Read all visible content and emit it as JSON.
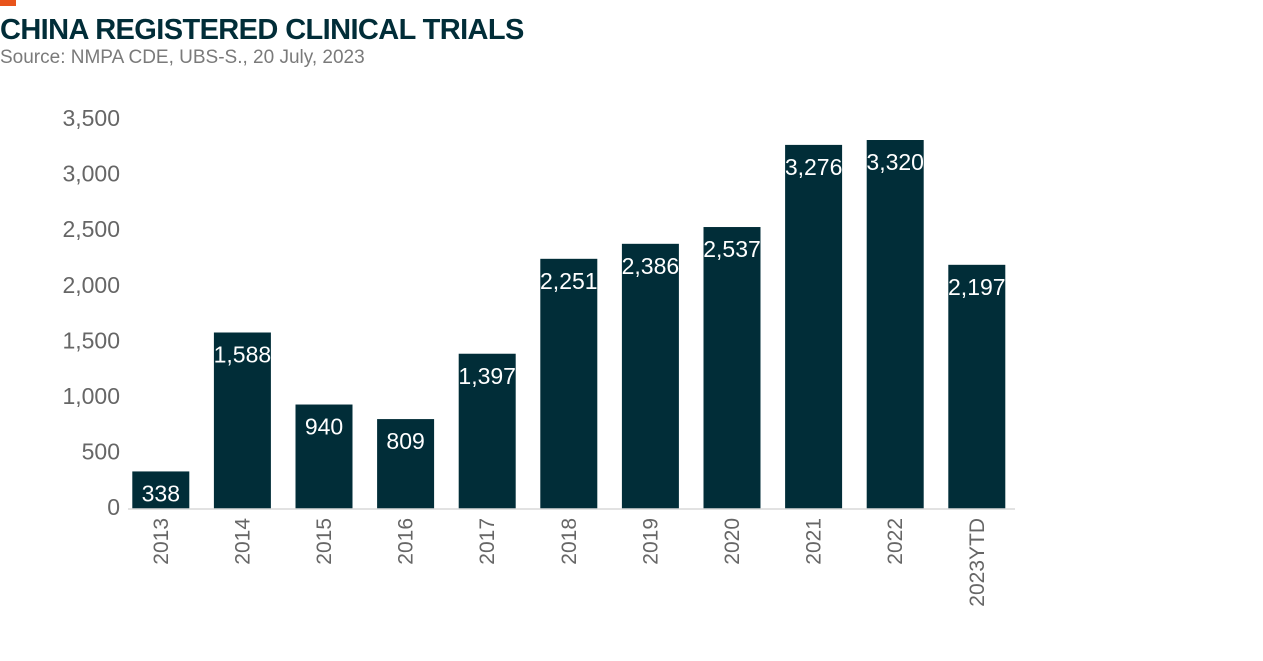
{
  "header": {
    "title": "CHINA REGISTERED CLINICAL TRIALS",
    "subtitle": "Source: NMPA CDE, UBS-S., 20 July, 2023"
  },
  "colors": {
    "bar": "#012d38",
    "accent": "#e8541c",
    "axis": "#d9d9d9",
    "tick_text": "#666666",
    "label_text": "#ffffff"
  },
  "chart_data": {
    "type": "bar",
    "title": "CHINA REGISTERED CLINICAL TRIALS",
    "subtitle": "Source: NMPA CDE, UBS-S., 20 July, 2023",
    "xlabel": "",
    "ylabel": "",
    "categories": [
      "2013",
      "2014",
      "2015",
      "2016",
      "2017",
      "2018",
      "2019",
      "2020",
      "2021",
      "2022",
      "2023YTD"
    ],
    "values": [
      338,
      1588,
      940,
      809,
      1397,
      2251,
      2386,
      2537,
      3276,
      3320,
      2197
    ],
    "data_labels": [
      "338",
      "1,588",
      "940",
      "809",
      "1,397",
      "2,251",
      "2,386",
      "2,537",
      "3,276",
      "3,320",
      "2,197"
    ],
    "ylim": [
      0,
      3500
    ],
    "yticks": [
      0,
      500,
      1000,
      1500,
      2000,
      2500,
      3000,
      3500
    ],
    "ytick_labels": [
      "0",
      "500",
      "1,000",
      "1,500",
      "2,000",
      "2,500",
      "3,000",
      "3,500"
    ],
    "grid": false,
    "legend": "none",
    "x_tick_rotation": -90
  }
}
